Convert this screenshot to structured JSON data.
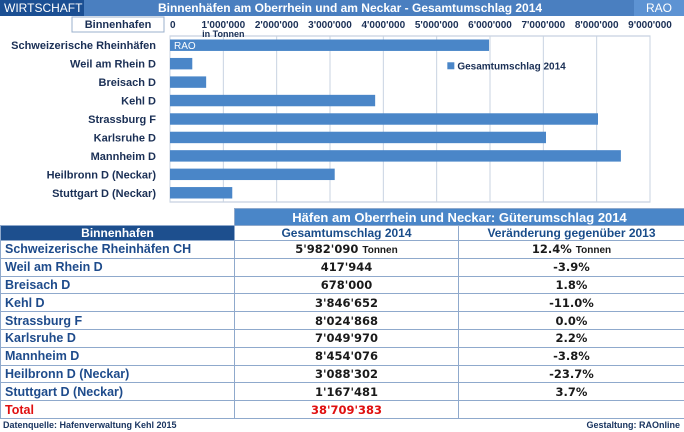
{
  "header": {
    "category": "WIRTSCHAFT",
    "title": "Binnenhäfen am Oberrhein und am Neckar - Gesamtumschlag 2014",
    "brand": "RAO"
  },
  "chart_data": {
    "type": "bar",
    "orientation": "horizontal",
    "corner_label": "Binnenhafen",
    "unit_label": "in Tonnen",
    "watermark": "RAO",
    "categories": [
      "Schweizerische Rheinhäfen",
      "Weil am Rhein D",
      "Breisach D",
      "Kehl D",
      "Strassburg F",
      "Karlsruhe D",
      "Mannheim D",
      "Heilbronn D (Neckar)",
      "Stuttgart D (Neckar)"
    ],
    "series": [
      {
        "name": "Gesamtumschlag 2014",
        "values": [
          5982090,
          417944,
          678000,
          3846652,
          8024868,
          7049970,
          8454076,
          3088302,
          1167481
        ]
      }
    ],
    "xlim": [
      0,
      9000000
    ],
    "ticks": [
      0,
      1000000,
      2000000,
      3000000,
      4000000,
      5000000,
      6000000,
      7000000,
      8000000,
      9000000
    ],
    "tick_labels": [
      "0",
      "1'000'000",
      "2'000'000",
      "3'000'000",
      "4'000'000",
      "5'000'000",
      "6'000'000",
      "7'000'000",
      "8'000'000",
      "9'000'000"
    ],
    "legend_position": "right",
    "bar_color": "#4a86c8",
    "grid": true
  },
  "table": {
    "title": "Häfen am Oberrhein und Neckar: Güterumschlag 2014",
    "headers": [
      "Binnenhafen",
      "Gesamtumschlag 2014",
      "Veränderung gegenüber 2013"
    ],
    "rows": [
      {
        "name": "Schweizerische Rheinhäfen CH",
        "value": "5'982'090",
        "value_unit": "Tonnen",
        "change": "12.4%",
        "change_unit": "Tonnen"
      },
      {
        "name": "Weil am Rhein D",
        "value": "417'944",
        "change": "-3.9%"
      },
      {
        "name": "Breisach D",
        "value": "678'000",
        "change": "1.8%"
      },
      {
        "name": "Kehl D",
        "value": "3'846'652",
        "change": "-11.0%"
      },
      {
        "name": "Strassburg F",
        "value": "8'024'868",
        "change": "0.0%"
      },
      {
        "name": "Karlsruhe D",
        "value": "7'049'970",
        "change": "2.2%"
      },
      {
        "name": "Mannheim D",
        "value": "8'454'076",
        "change": "-3.8%"
      },
      {
        "name": "Heilbronn D (Neckar)",
        "value": "3'088'302",
        "change": "-23.7%"
      },
      {
        "name": "Stuttgart D (Neckar)",
        "value": "1'167'481",
        "change": "3.7%"
      }
    ],
    "total": {
      "name": "Total",
      "value": "38'709'383"
    }
  },
  "footer": {
    "source": "Datenquelle: Hafenverwaltung Kehl 2015",
    "credit": "Gestaltung: RAOnline"
  }
}
